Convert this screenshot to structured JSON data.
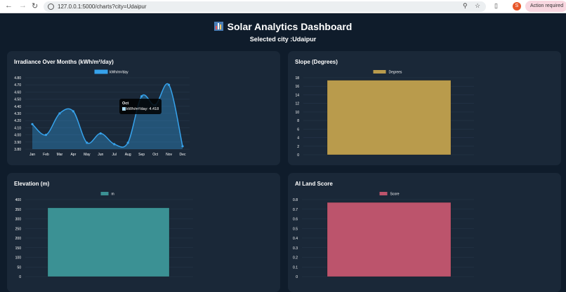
{
  "browser": {
    "url": "127.0.0.1:5000/charts?city=Udaipur",
    "profile_initial": "S",
    "action_label": "Action required"
  },
  "header": {
    "title": "Solar Analytics Dashboard",
    "icon": "bar-chart-emoji",
    "subtitle": "Selected city :Udaipur"
  },
  "tooltip": {
    "title": "Oct",
    "label": "kWh/m²/day: 4.418",
    "color": "#a8d8f0"
  },
  "chart_data": [
    {
      "id": "irradiance",
      "type": "line",
      "title": "Irradiance Over Months (kWh/m²/day)",
      "categories": [
        "Jan",
        "Feb",
        "Mar",
        "Apr",
        "May",
        "Jun",
        "Jul",
        "Aug",
        "Sep",
        "Oct",
        "Nov",
        "Dec"
      ],
      "series": [
        {
          "name": "kWh/m²/day",
          "values": [
            4.15,
            4.0,
            4.3,
            4.33,
            3.89,
            4.02,
            3.87,
            3.89,
            4.54,
            4.418,
            4.7,
            3.84
          ]
        }
      ],
      "ylim": [
        3.8,
        4.8
      ],
      "yticks": [
        "4.80",
        "4.70",
        "4.60",
        "4.50",
        "4.40",
        "4.30",
        "4.20",
        "4.10",
        "4.00",
        "3.90",
        "3.80"
      ],
      "color": "#36a2eb",
      "fill": true,
      "legend": "top"
    },
    {
      "id": "slope",
      "type": "bar",
      "title": "Slope (Degrees)",
      "categories": [
        ""
      ],
      "series": [
        {
          "name": "Degrees",
          "values": [
            17.4
          ]
        }
      ],
      "ylim": [
        0,
        18
      ],
      "yticks": [
        "18",
        "16",
        "14",
        "12",
        "10",
        "8",
        "6",
        "4",
        "2",
        "0"
      ],
      "color": "#b99b4c",
      "legend": "top"
    },
    {
      "id": "elevation",
      "type": "bar",
      "title": "Elevation (m)",
      "categories": [
        ""
      ],
      "series": [
        {
          "name": "m",
          "values": [
            357
          ]
        }
      ],
      "ylim": [
        0,
        400
      ],
      "yticks": [
        "400",
        "350",
        "300",
        "250",
        "200",
        "150",
        "100",
        "50",
        "0"
      ],
      "color": "#3b9194",
      "legend": "top"
    },
    {
      "id": "score",
      "type": "bar",
      "title": "AI Land Score",
      "categories": [
        ""
      ],
      "series": [
        {
          "name": "Score",
          "values": [
            0.77
          ]
        }
      ],
      "ylim": [
        0,
        0.8
      ],
      "yticks": [
        "0.8",
        "0.7",
        "0.6",
        "0.5",
        "0.4",
        "0.3",
        "0.2",
        "0.1",
        "0"
      ],
      "color": "#bc546c",
      "legend": "top"
    }
  ]
}
